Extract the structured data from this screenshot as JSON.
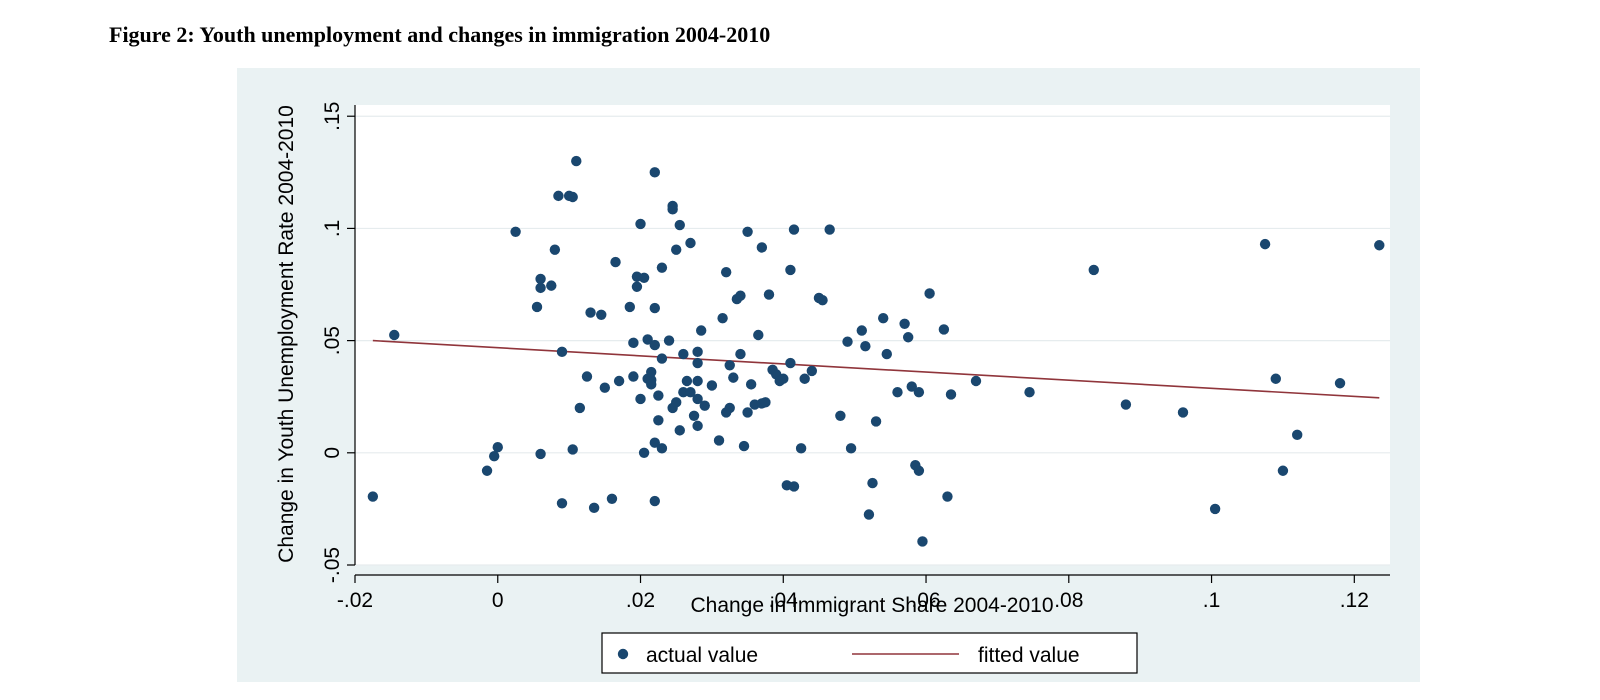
{
  "figure": {
    "caption": "Figure 2: Youth unemployment and changes in immigration 2004-2010"
  },
  "colors": {
    "panel_background": "#eaf2f3",
    "plot_background": "#ffffff",
    "marker": "#1a476f",
    "fitted_line": "#90353b",
    "gridline": "#e6ecee"
  },
  "chart_data": {
    "type": "scatter",
    "title": "Figure 2: Youth unemployment and changes in immigration 2004-2010",
    "xlabel": "Change in Immigrant Share 2004-2010",
    "ylabel": "Change in Youth Unemployment Rate 2004-2010",
    "xlim": [
      -0.02,
      0.125
    ],
    "ylim": [
      -0.05,
      0.155
    ],
    "x_ticks": [
      -0.02,
      0,
      0.02,
      0.04,
      0.06,
      0.08,
      0.1,
      0.12
    ],
    "x_tick_labels": [
      "-.02",
      "0",
      ".02",
      ".04",
      ".06",
      ".08",
      ".1",
      ".12"
    ],
    "y_ticks": [
      -0.05,
      0,
      0.05,
      0.1,
      0.15
    ],
    "y_tick_labels": [
      "-.05",
      "0",
      ".05",
      ".1",
      ".15"
    ],
    "grid": true,
    "legend_position": "bottom",
    "series": [
      {
        "name": "actual value",
        "kind": "scatter",
        "points": [
          [
            -0.0175,
            -0.0195
          ],
          [
            -0.0145,
            0.0525
          ],
          [
            -0.0015,
            -0.008
          ],
          [
            -0.0005,
            -0.0015
          ],
          [
            0.0,
            0.0025
          ],
          [
            0.0025,
            0.0985
          ],
          [
            0.0055,
            0.065
          ],
          [
            0.006,
            0.0735
          ],
          [
            0.006,
            0.0775
          ],
          [
            0.006,
            -0.0005
          ],
          [
            0.0075,
            0.0745
          ],
          [
            0.008,
            0.0905
          ],
          [
            0.0085,
            0.1145
          ],
          [
            0.009,
            0.045
          ],
          [
            0.009,
            -0.0225
          ],
          [
            0.01,
            0.1145
          ],
          [
            0.0105,
            0.114
          ],
          [
            0.0105,
            0.0015
          ],
          [
            0.011,
            0.13
          ],
          [
            0.0115,
            0.02
          ],
          [
            0.0125,
            0.034
          ],
          [
            0.013,
            0.0625
          ],
          [
            0.0135,
            -0.0245
          ],
          [
            0.0145,
            0.0615
          ],
          [
            0.015,
            0.029
          ],
          [
            0.016,
            -0.0205
          ],
          [
            0.0165,
            0.085
          ],
          [
            0.017,
            0.032
          ],
          [
            0.0185,
            0.065
          ],
          [
            0.019,
            0.049
          ],
          [
            0.019,
            0.034
          ],
          [
            0.0195,
            0.074
          ],
          [
            0.0195,
            0.0785
          ],
          [
            0.02,
            0.102
          ],
          [
            0.0205,
            0.078
          ],
          [
            0.02,
            0.024
          ],
          [
            0.0205,
            0.0
          ],
          [
            0.021,
            0.033
          ],
          [
            0.021,
            0.0505
          ],
          [
            0.0215,
            0.0325
          ],
          [
            0.0215,
            0.036
          ],
          [
            0.0215,
            0.0305
          ],
          [
            0.022,
            0.125
          ],
          [
            0.022,
            0.0645
          ],
          [
            0.022,
            0.048
          ],
          [
            0.022,
            0.0045
          ],
          [
            0.022,
            -0.0215
          ],
          [
            0.0225,
            0.0255
          ],
          [
            0.0225,
            0.0145
          ],
          [
            0.023,
            0.0825
          ],
          [
            0.023,
            0.042
          ],
          [
            0.023,
            0.002
          ],
          [
            0.024,
            0.05
          ],
          [
            0.0245,
            0.1085
          ],
          [
            0.0245,
            0.11
          ],
          [
            0.0245,
            0.02
          ],
          [
            0.025,
            0.0905
          ],
          [
            0.025,
            0.0225
          ],
          [
            0.0255,
            0.1015
          ],
          [
            0.0255,
            0.01
          ],
          [
            0.026,
            0.044
          ],
          [
            0.026,
            0.027
          ],
          [
            0.0265,
            0.032
          ],
          [
            0.027,
            0.0935
          ],
          [
            0.027,
            0.027
          ],
          [
            0.0275,
            0.0165
          ],
          [
            0.028,
            0.045
          ],
          [
            0.028,
            0.04
          ],
          [
            0.028,
            0.032
          ],
          [
            0.028,
            0.024
          ],
          [
            0.028,
            0.012
          ],
          [
            0.0285,
            0.0545
          ],
          [
            0.029,
            0.021
          ],
          [
            0.03,
            0.03
          ],
          [
            0.031,
            0.0055
          ],
          [
            0.0315,
            0.06
          ],
          [
            0.032,
            0.0805
          ],
          [
            0.032,
            0.018
          ],
          [
            0.0325,
            0.039
          ],
          [
            0.0325,
            0.02
          ],
          [
            0.033,
            0.0335
          ],
          [
            0.0335,
            0.0685
          ],
          [
            0.034,
            0.07
          ],
          [
            0.034,
            0.044
          ],
          [
            0.0345,
            0.003
          ],
          [
            0.035,
            0.0985
          ],
          [
            0.035,
            0.018
          ],
          [
            0.0355,
            0.0305
          ],
          [
            0.036,
            0.0215
          ],
          [
            0.0365,
            0.0525
          ],
          [
            0.037,
            0.0915
          ],
          [
            0.037,
            0.022
          ],
          [
            0.0375,
            0.0225
          ],
          [
            0.038,
            0.0705
          ],
          [
            0.0385,
            0.037
          ],
          [
            0.039,
            0.035
          ],
          [
            0.0395,
            0.032
          ],
          [
            0.04,
            0.033
          ],
          [
            0.0405,
            -0.0145
          ],
          [
            0.041,
            0.0815
          ],
          [
            0.041,
            0.04
          ],
          [
            0.0415,
            0.0995
          ],
          [
            0.0415,
            -0.015
          ],
          [
            0.0425,
            0.002
          ],
          [
            0.043,
            0.033
          ],
          [
            0.044,
            0.0365
          ],
          [
            0.045,
            0.069
          ],
          [
            0.0455,
            0.068
          ],
          [
            0.0465,
            0.0995
          ],
          [
            0.048,
            0.0165
          ],
          [
            0.049,
            0.0495
          ],
          [
            0.0495,
            0.002
          ],
          [
            0.051,
            0.0545
          ],
          [
            0.0515,
            0.0475
          ],
          [
            0.052,
            -0.0275
          ],
          [
            0.0525,
            -0.0135
          ],
          [
            0.053,
            0.014
          ],
          [
            0.054,
            0.06
          ],
          [
            0.0545,
            0.044
          ],
          [
            0.056,
            0.027
          ],
          [
            0.057,
            0.0575
          ],
          [
            0.0575,
            0.0515
          ],
          [
            0.058,
            0.0295
          ],
          [
            0.0585,
            -0.0055
          ],
          [
            0.059,
            -0.008
          ],
          [
            0.059,
            0.027
          ],
          [
            0.0595,
            -0.0395
          ],
          [
            0.0605,
            0.071
          ],
          [
            0.0625,
            0.055
          ],
          [
            0.063,
            -0.0195
          ],
          [
            0.0635,
            0.026
          ],
          [
            0.067,
            0.032
          ],
          [
            0.0745,
            0.027
          ],
          [
            0.0835,
            0.0815
          ],
          [
            0.088,
            0.0215
          ],
          [
            0.096,
            0.018
          ],
          [
            0.1005,
            -0.025
          ],
          [
            0.1075,
            0.093
          ],
          [
            0.109,
            0.033
          ],
          [
            0.11,
            -0.008
          ],
          [
            0.112,
            0.008
          ],
          [
            0.118,
            0.031
          ],
          [
            0.1235,
            0.0925
          ]
        ]
      },
      {
        "name": "fitted value",
        "kind": "line",
        "points": [
          [
            -0.0175,
            0.05
          ],
          [
            0.1235,
            0.0245
          ]
        ]
      }
    ]
  }
}
